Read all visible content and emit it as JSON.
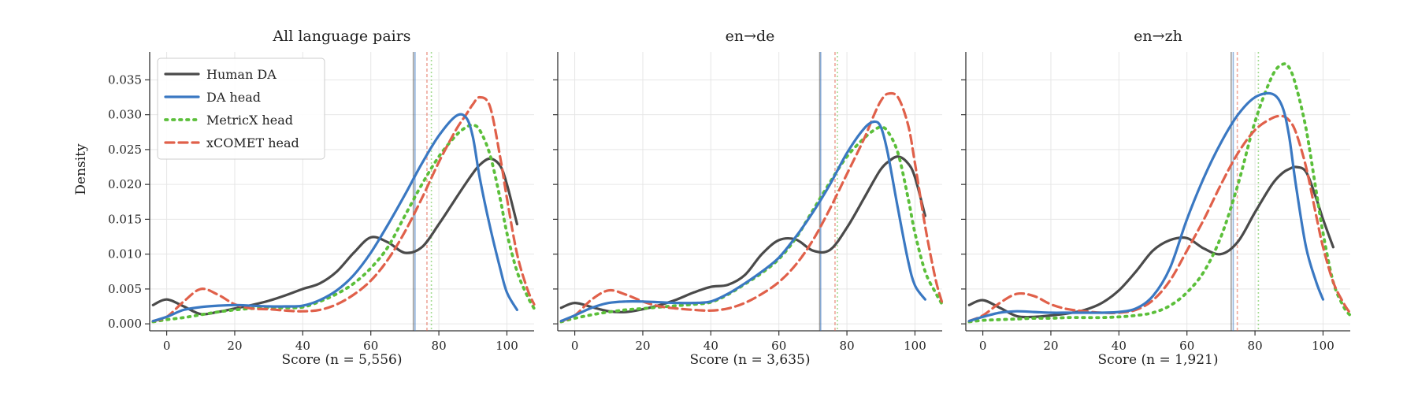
{
  "chart_data": {
    "type": "line",
    "ylabel": "Density",
    "x_ticks": [
      0,
      20,
      40,
      60,
      80,
      100
    ],
    "y_ticks": [
      0.0,
      0.005,
      0.01,
      0.015,
      0.02,
      0.025,
      0.03,
      0.035
    ],
    "y_tick_labels": [
      "0.000",
      "0.005",
      "0.010",
      "0.015",
      "0.020",
      "0.025",
      "0.030",
      "0.035"
    ],
    "xlim": [
      -5,
      108
    ],
    "ylim": [
      -0.001,
      0.039
    ],
    "grid": true,
    "legend_position": "top-left",
    "series_styles": [
      {
        "name": "Human DA",
        "color": "#4a4a4a",
        "dash": "solid"
      },
      {
        "name": "DA head",
        "color": "#3a78c2",
        "dash": "solid"
      },
      {
        "name": "MetricX head",
        "color": "#5bbf3a",
        "dash": "dotted"
      },
      {
        "name": "xCOMET head",
        "color": "#e0604a",
        "dash": "dashed"
      }
    ],
    "panels": [
      {
        "title": "All language pairs",
        "xlabel": "Score (n = 5,556)",
        "x": [
          -4,
          0,
          5,
          10,
          15,
          20,
          25,
          30,
          35,
          40,
          45,
          50,
          55,
          60,
          65,
          70,
          75,
          80,
          85,
          88,
          90,
          92,
          95,
          98,
          100,
          103,
          106,
          108
        ],
        "series": [
          {
            "name": "Human DA",
            "values": [
              0.0027,
              0.0035,
              0.0025,
              0.0014,
              0.0017,
              0.0022,
              0.0027,
              0.0033,
              0.0041,
              0.005,
              0.0058,
              0.0075,
              0.0102,
              0.0124,
              0.0117,
              0.0102,
              0.011,
              0.0143,
              0.018,
              0.0202,
              0.0216,
              0.0228,
              0.0237,
              0.0227,
              0.02,
              0.0143,
              null,
              null
            ]
          },
          {
            "name": "DA head",
            "values": [
              0.0004,
              0.001,
              0.002,
              0.0024,
              0.0026,
              0.0027,
              0.0026,
              0.0025,
              0.0025,
              0.0026,
              0.0034,
              0.0048,
              0.007,
              0.0102,
              0.0142,
              0.0185,
              0.023,
              0.027,
              0.0298,
              0.0296,
              0.0268,
              0.021,
              0.014,
              0.008,
              0.0045,
              0.002,
              null,
              null
            ]
          },
          {
            "name": "MetricX head",
            "values": [
              0.0003,
              0.0006,
              0.0009,
              0.0013,
              0.0017,
              0.002,
              0.0022,
              0.0023,
              0.0023,
              0.0024,
              0.0032,
              0.0043,
              0.0058,
              0.008,
              0.011,
              0.0155,
              0.02,
              0.024,
              0.027,
              0.0282,
              0.0285,
              0.0278,
              0.0243,
              0.018,
              0.013,
              0.0075,
              0.004,
              0.0022
            ]
          },
          {
            "name": "xCOMET head",
            "values": [
              0.0004,
              0.001,
              0.0032,
              0.005,
              0.0042,
              0.0028,
              0.0022,
              0.0021,
              0.0019,
              0.0018,
              0.002,
              0.0028,
              0.0042,
              0.0062,
              0.0092,
              0.0132,
              0.018,
              0.0232,
              0.0278,
              0.03,
              0.0315,
              0.0325,
              0.0312,
              0.024,
              0.018,
              0.01,
              0.005,
              0.0028
            ]
          }
        ],
        "vlines": [
          {
            "name": "Human DA",
            "x": 72.5,
            "style": "solid"
          },
          {
            "name": "DA head",
            "x": 73.0,
            "style": "solid"
          },
          {
            "name": "xCOMET head",
            "x": 76.5,
            "style": "dashed"
          },
          {
            "name": "MetricX head",
            "x": 77.8,
            "style": "dotted"
          }
        ]
      },
      {
        "title": "en→de",
        "xlabel": "Score (n = 3,635)",
        "x": [
          -4,
          0,
          5,
          10,
          15,
          20,
          25,
          30,
          35,
          40,
          45,
          50,
          55,
          60,
          65,
          70,
          75,
          80,
          85,
          88,
          90,
          92,
          95,
          98,
          100,
          103,
          106,
          108
        ],
        "series": [
          {
            "name": "Human DA",
            "values": [
              0.0023,
              0.003,
              0.0024,
              0.0018,
              0.0017,
              0.0021,
              0.0027,
              0.0035,
              0.0045,
              0.0053,
              0.0056,
              0.007,
              0.01,
              0.012,
              0.0121,
              0.0105,
              0.0106,
              0.0138,
              0.018,
              0.0206,
              0.0222,
              0.0232,
              0.024,
              0.023,
              0.021,
              0.0155,
              null,
              null
            ]
          },
          {
            "name": "DA head",
            "values": [
              0.0004,
              0.0012,
              0.0023,
              0.003,
              0.0032,
              0.0032,
              0.0031,
              0.003,
              0.003,
              0.0032,
              0.0043,
              0.0058,
              0.0075,
              0.0095,
              0.0125,
              0.016,
              0.02,
              0.0245,
              0.028,
              0.029,
              0.0282,
              0.0245,
              0.0165,
              0.009,
              0.0055,
              0.0035,
              null,
              null
            ]
          },
          {
            "name": "MetricX head",
            "values": [
              0.0003,
              0.0008,
              0.0013,
              0.0017,
              0.002,
              0.0022,
              0.0024,
              0.0026,
              0.0028,
              0.0031,
              0.0042,
              0.0057,
              0.0073,
              0.0093,
              0.0123,
              0.0163,
              0.0203,
              0.024,
              0.0266,
              0.0278,
              0.0282,
              0.0276,
              0.0245,
              0.018,
              0.013,
              0.0075,
              0.0045,
              0.0028
            ]
          },
          {
            "name": "xCOMET head",
            "values": [
              0.0004,
              0.0012,
              0.0035,
              0.0048,
              0.0042,
              0.0032,
              0.0025,
              0.0022,
              0.002,
              0.0019,
              0.0022,
              0.003,
              0.0043,
              0.006,
              0.0085,
              0.012,
              0.0165,
              0.0215,
              0.0265,
              0.03,
              0.032,
              0.033,
              0.0325,
              0.0285,
              0.023,
              0.014,
              0.0065,
              0.003
            ]
          }
        ],
        "vlines": [
          {
            "name": "Human DA",
            "x": 72.0,
            "style": "solid"
          },
          {
            "name": "DA head",
            "x": 72.3,
            "style": "solid"
          },
          {
            "name": "xCOMET head",
            "x": 76.5,
            "style": "dashed"
          },
          {
            "name": "MetricX head",
            "x": 77.2,
            "style": "dotted"
          }
        ]
      },
      {
        "title": "en→zh",
        "xlabel": "Score (n = 1,921)",
        "x": [
          -4,
          0,
          5,
          10,
          15,
          20,
          25,
          30,
          35,
          40,
          45,
          50,
          55,
          60,
          65,
          70,
          75,
          80,
          85,
          88,
          90,
          92,
          95,
          98,
          100,
          103,
          106,
          108
        ],
        "series": [
          {
            "name": "Human DA",
            "values": [
              0.0027,
              0.0034,
              0.0023,
              0.0011,
              0.001,
              0.0012,
              0.0015,
              0.002,
              0.003,
              0.0048,
              0.0075,
              0.0105,
              0.012,
              0.0123,
              0.0108,
              0.01,
              0.0118,
              0.016,
              0.02,
              0.0216,
              0.0222,
              0.0225,
              0.0218,
              0.018,
              0.015,
              0.011,
              null,
              null
            ]
          },
          {
            "name": "DA head",
            "values": [
              0.0004,
              0.001,
              0.0016,
              0.0018,
              0.0017,
              0.0016,
              0.0016,
              0.0016,
              0.0016,
              0.0017,
              0.0022,
              0.004,
              0.008,
              0.015,
              0.021,
              0.026,
              0.03,
              0.0325,
              0.033,
              0.0312,
              0.027,
              0.02,
              0.011,
              0.006,
              0.0035,
              null,
              null,
              null
            ]
          },
          {
            "name": "MetricX head",
            "values": [
              0.0003,
              0.0005,
              0.0006,
              0.0007,
              0.0008,
              0.0008,
              0.0009,
              0.0009,
              0.0009,
              0.001,
              0.0012,
              0.0016,
              0.0026,
              0.0045,
              0.0075,
              0.0125,
              0.02,
              0.029,
              0.0355,
              0.0372,
              0.0368,
              0.0342,
              0.028,
              0.019,
              0.013,
              0.006,
              0.0025,
              0.0012
            ]
          },
          {
            "name": "xCOMET head",
            "values": [
              0.0004,
              0.0012,
              0.003,
              0.0043,
              0.004,
              0.0028,
              0.0021,
              0.0018,
              0.0016,
              0.0016,
              0.002,
              0.0034,
              0.0062,
              0.0105,
              0.015,
              0.02,
              0.0245,
              0.0278,
              0.0295,
              0.0298,
              0.0292,
              0.0275,
              0.0225,
              0.0155,
              0.011,
              0.006,
              0.003,
              0.0015
            ]
          }
        ],
        "vlines": [
          {
            "name": "Human DA",
            "x": 73.0,
            "style": "solid"
          },
          {
            "name": "DA head",
            "x": 73.6,
            "style": "solid"
          },
          {
            "name": "xCOMET head",
            "x": 74.8,
            "style": "dashed"
          },
          {
            "name": "MetricX head",
            "x": 81.0,
            "style": "dotted"
          }
        ]
      }
    ]
  }
}
